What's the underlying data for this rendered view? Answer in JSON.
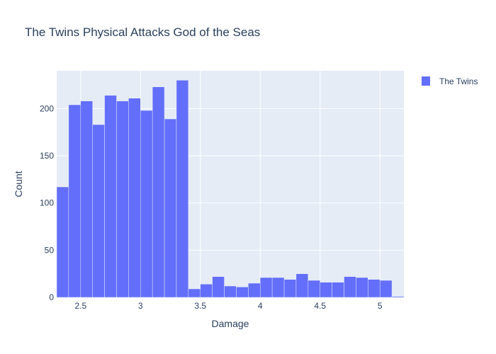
{
  "chart_data": {
    "type": "bar",
    "title": "The Twins Physical Attacks God of the Seas",
    "xlabel": "Damage",
    "ylabel": "Count",
    "xlim": [
      2.3,
      5.2
    ],
    "ylim": [
      0,
      240
    ],
    "x_ticks": [
      2.5,
      3,
      3.5,
      4,
      4.5,
      5
    ],
    "x_tick_labels": [
      "2.5",
      "3",
      "3.5",
      "4",
      "4.5",
      "5"
    ],
    "y_ticks": [
      0,
      50,
      100,
      150,
      200
    ],
    "y_tick_labels": [
      "0",
      "50",
      "100",
      "150",
      "200"
    ],
    "bin_width": 0.1,
    "legend_position": "top-right",
    "grid": true,
    "series": [
      {
        "name": "The Twins",
        "color": "#636efa",
        "bin_starts": [
          2.3,
          2.4,
          2.5,
          2.6,
          2.7,
          2.8,
          2.9,
          3.0,
          3.1,
          3.2,
          3.3,
          3.4,
          3.5,
          3.6,
          3.7,
          3.8,
          3.9,
          4.0,
          4.1,
          4.2,
          4.3,
          4.4,
          4.5,
          4.6,
          4.7,
          4.8,
          4.9,
          5.0,
          5.1
        ],
        "values": [
          117,
          204,
          208,
          183,
          214,
          208,
          211,
          198,
          223,
          189,
          230,
          9,
          14,
          22,
          12,
          11,
          15,
          21,
          21,
          19,
          25,
          18,
          16,
          16,
          22,
          21,
          19,
          18,
          1
        ]
      }
    ]
  }
}
